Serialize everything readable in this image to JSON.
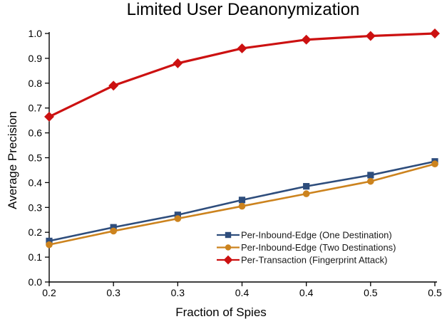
{
  "chart_data": {
    "type": "line",
    "title": "Limited User Deanonymization",
    "xlabel": "Fraction of Spies",
    "ylabel": "Average Precision",
    "x": [
      0.2,
      0.25,
      0.3,
      0.35,
      0.4,
      0.45,
      0.5
    ],
    "x_tick_labels": [
      "0.2",
      "0.3",
      "0.3",
      "0.4",
      "0.4",
      "0.5",
      "0.5"
    ],
    "y_ticks": [
      0.0,
      0.1,
      0.2,
      0.3,
      0.4,
      0.5,
      0.6,
      0.7,
      0.8,
      0.9,
      1.0
    ],
    "y_tick_labels": [
      "0.0",
      "0.1",
      "0.2",
      "0.3",
      "0.4",
      "0.5",
      "0.6",
      "0.7",
      "0.8",
      "0.9",
      "1.0"
    ],
    "xlim": [
      0.2,
      0.5
    ],
    "ylim": [
      0.0,
      1.0
    ],
    "grid": false,
    "legend_position": "lower-right-inside",
    "axis_color": "#000000",
    "series": [
      {
        "name": "Per-Inbound-Edge (One Destination)",
        "marker": "square",
        "color": "#2e4d7c",
        "line_width": 2.6,
        "values": [
          0.165,
          0.22,
          0.27,
          0.33,
          0.385,
          0.43,
          0.485
        ]
      },
      {
        "name": "Per-Inbound-Edge (Two Destinations)",
        "marker": "circle",
        "color": "#cc831e",
        "line_width": 2.6,
        "values": [
          0.15,
          0.205,
          0.255,
          0.305,
          0.355,
          0.405,
          0.475
        ]
      },
      {
        "name": "Per-Transaction (Fingerprint Attack)",
        "marker": "diamond",
        "color": "#cc1111",
        "line_width": 3.2,
        "values": [
          0.665,
          0.79,
          0.88,
          0.94,
          0.975,
          0.99,
          1.0
        ]
      }
    ]
  }
}
